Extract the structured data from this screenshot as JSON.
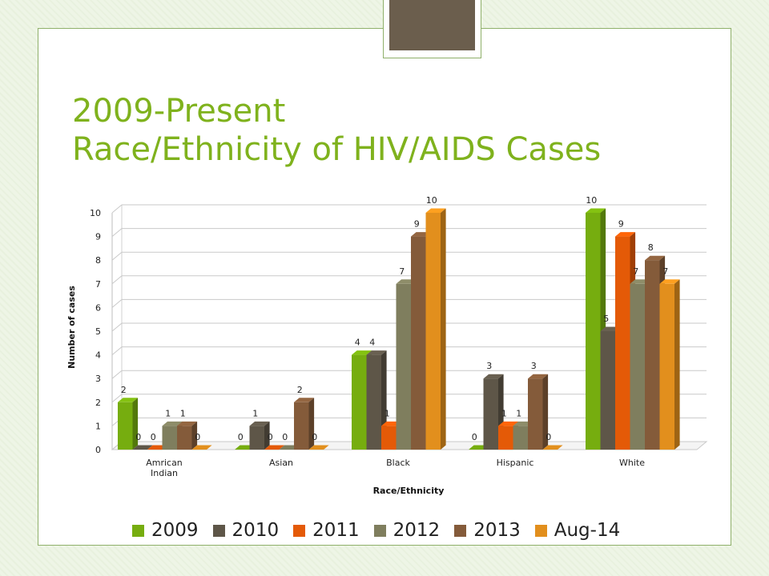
{
  "slide": {
    "title_line1": "2009-Present",
    "title_line2": "Race/Ethnicity of HIV/AIDS Cases"
  },
  "chart_data": {
    "type": "bar",
    "bar_style": "3d-clustered-column",
    "categories": [
      "Amrican Indian",
      "Asian",
      "Black",
      "Hispanic",
      "White"
    ],
    "category_lines": [
      [
        "Amrican",
        "Indian"
      ],
      [
        "Asian"
      ],
      [
        "Black"
      ],
      [
        "Hispanic"
      ],
      [
        "White"
      ]
    ],
    "series": [
      {
        "name": "2009",
        "color": "#76ad0f",
        "values": [
          2,
          0,
          4,
          0,
          10
        ]
      },
      {
        "name": "2010",
        "color": "#5e5648",
        "values": [
          0,
          1,
          4,
          3,
          5
        ]
      },
      {
        "name": "2011",
        "color": "#e45a07",
        "values": [
          0,
          0,
          1,
          1,
          9
        ]
      },
      {
        "name": "2012",
        "color": "#7f7e5e",
        "values": [
          1,
          0,
          7,
          1,
          7
        ]
      },
      {
        "name": "2013",
        "color": "#845b3a",
        "values": [
          1,
          2,
          9,
          3,
          8
        ]
      },
      {
        "name": "Aug-14",
        "color": "#e28f1d",
        "values": [
          0,
          0,
          10,
          0,
          7
        ]
      }
    ],
    "xlabel": "Race/Ethnicity",
    "ylabel": "Number of cases",
    "ylim": [
      0,
      10
    ],
    "yticks": [
      0,
      1,
      2,
      3,
      4,
      5,
      6,
      7,
      8,
      9,
      10
    ],
    "grid": true,
    "legend_position": "bottom",
    "data_labels": true
  }
}
